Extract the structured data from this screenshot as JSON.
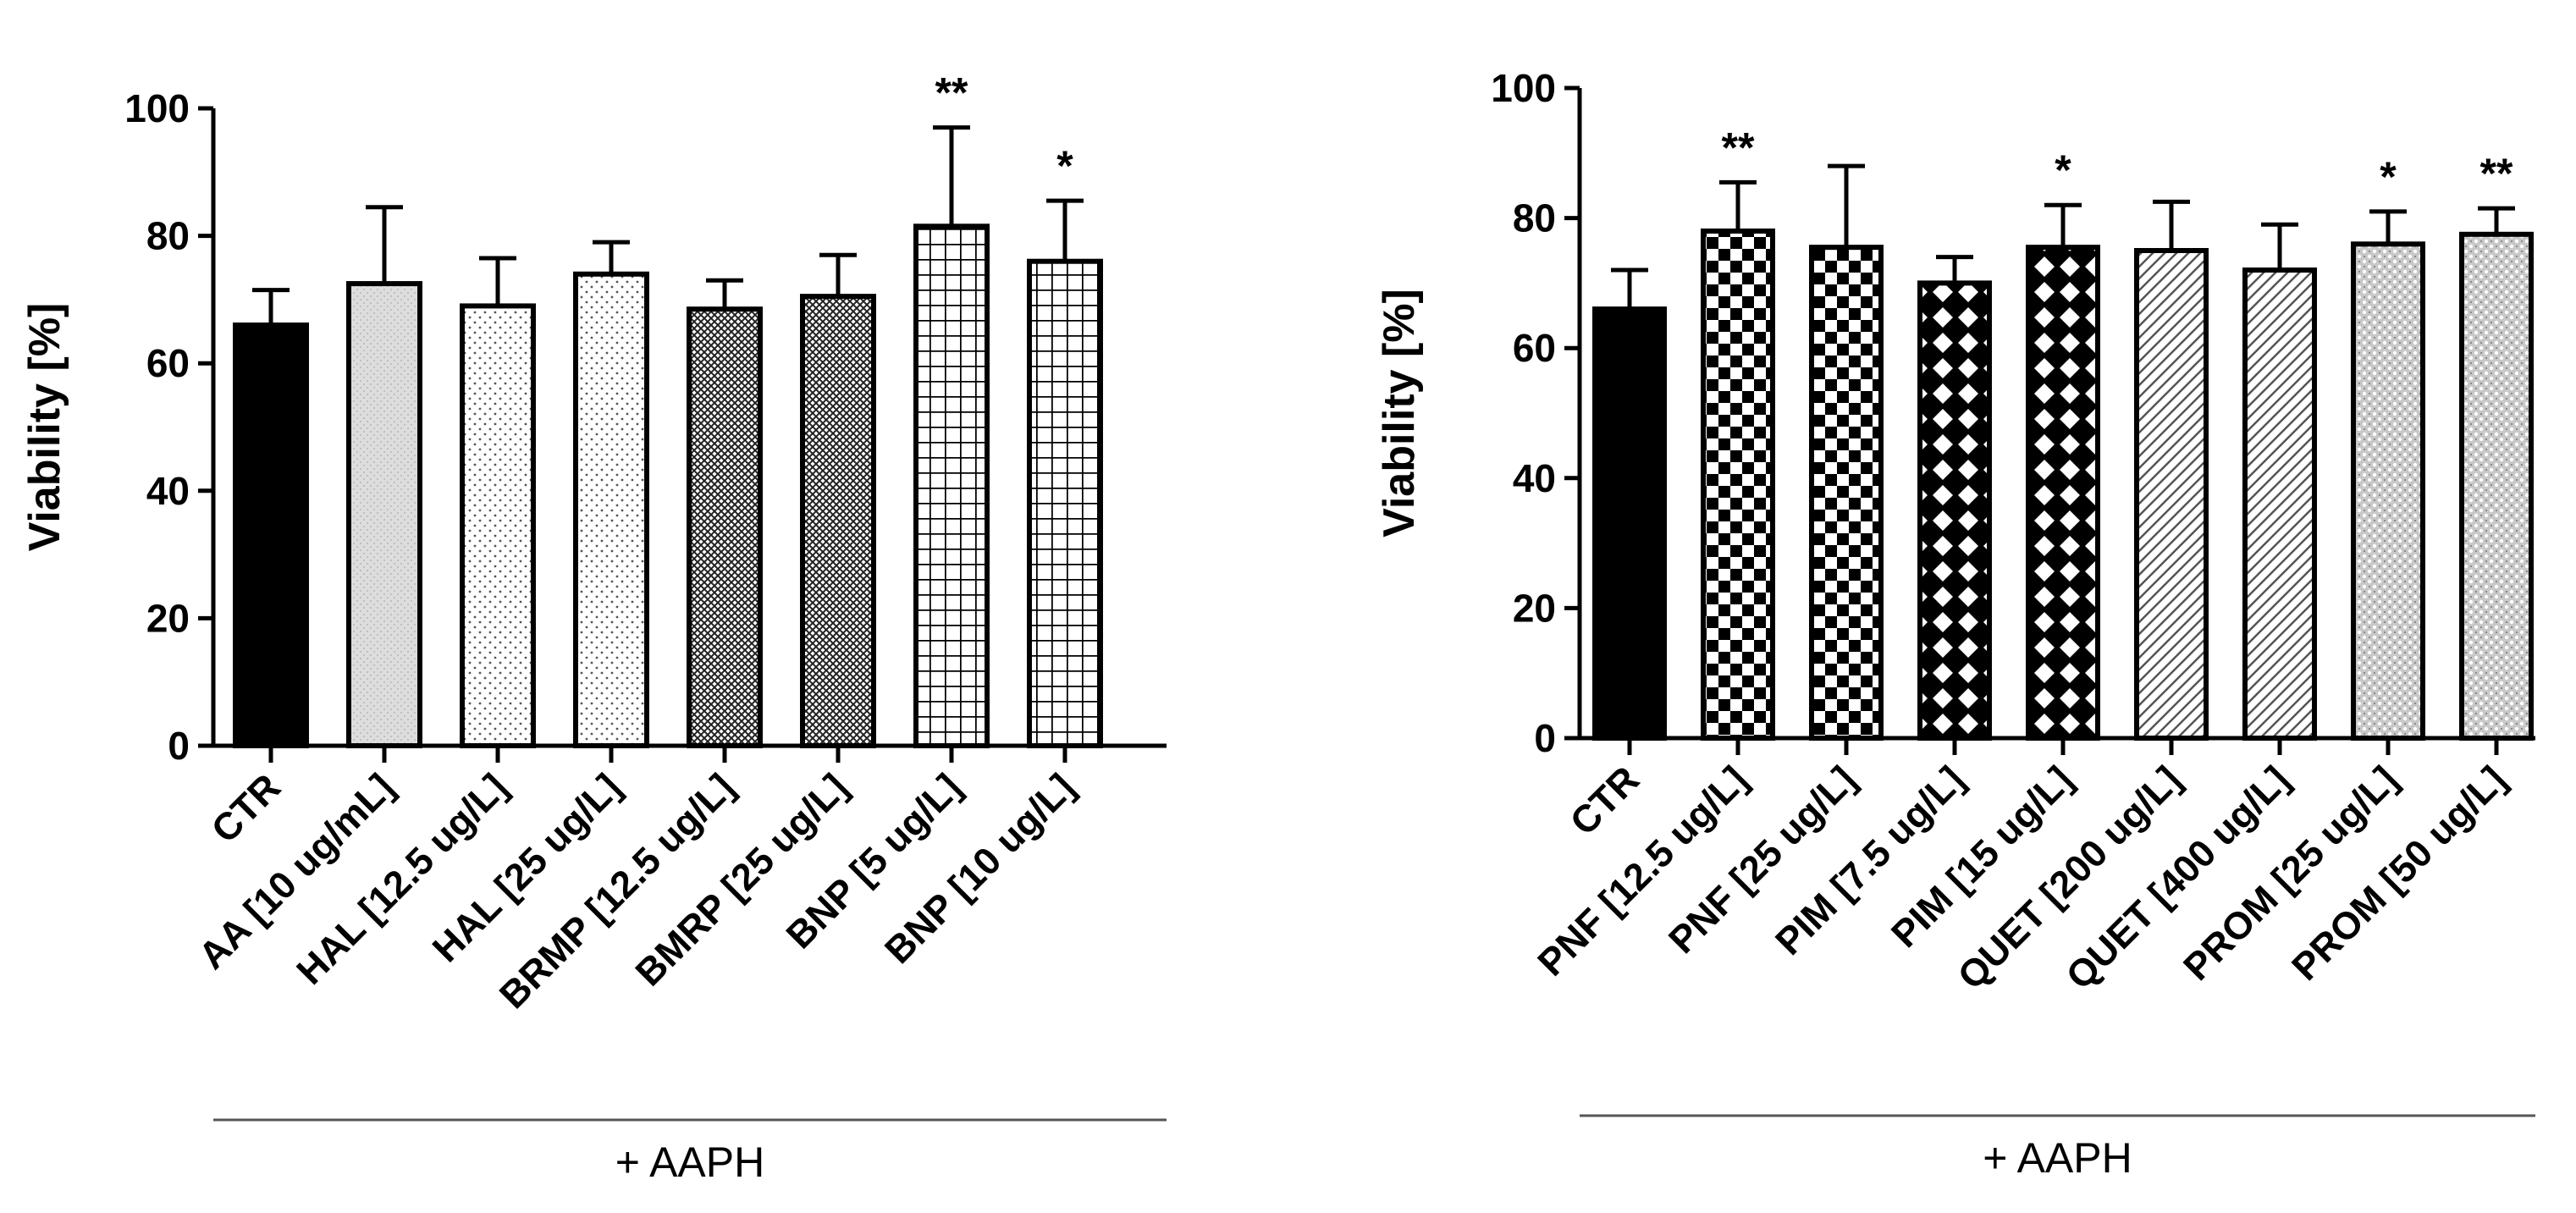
{
  "chart_data": [
    {
      "type": "bar",
      "ylabel": "Viability [%]",
      "ylim": [
        0,
        100
      ],
      "yticks": [
        0,
        20,
        40,
        60,
        80,
        100
      ],
      "group_label": "+ AAPH",
      "categories": [
        "CTR",
        "AA [10 ug/mL]",
        "HAL [12.5 ug/L]",
        "HAL [25 ug/L]",
        "BRMP [12.5 ug/L]",
        "BMRP [25 ug/L]",
        "BNP [5 ug/L]",
        "BNP [10 ug/L]"
      ],
      "values": [
        66,
        72.5,
        69,
        74,
        68.5,
        70.5,
        81.5,
        76
      ],
      "errors": [
        5.5,
        12,
        7.5,
        5,
        4.5,
        6.5,
        15.5,
        9.5
      ],
      "significance": [
        "",
        "",
        "",
        "",
        "",
        "",
        "**",
        "*"
      ],
      "patterns": [
        "solid-black",
        "light-gray-dots",
        "sparse-dots",
        "sparse-dots",
        "dense-crosshatch",
        "dense-crosshatch",
        "square-grid",
        "square-grid"
      ]
    },
    {
      "type": "bar",
      "ylabel": "Viability [%]",
      "ylim": [
        0,
        100
      ],
      "yticks": [
        0,
        20,
        40,
        60,
        80,
        100
      ],
      "group_label": "+ AAPH",
      "categories": [
        "CTR",
        "PNF [12.5 ug/L]",
        "PNF [25 ug/L]",
        "PIM [7.5 ug/L]",
        "PIM [15 ug/L]",
        "QUET [200 ug/L]",
        "QUET [400 ug/L]",
        "PROM [25 ug/L]",
        "PROM [50 ug/L]"
      ],
      "values": [
        66,
        78,
        75.5,
        70,
        75.5,
        75,
        72,
        76,
        77.5
      ],
      "errors": [
        6,
        7.5,
        12.5,
        4,
        6.5,
        7.5,
        7,
        5,
        4
      ],
      "significance": [
        "",
        "**",
        "",
        "",
        "*",
        "",
        "",
        "*",
        "**"
      ],
      "patterns": [
        "solid-black",
        "checker",
        "checker",
        "diamond",
        "diamond",
        "diagonal",
        "diagonal",
        "gray-scale",
        "gray-scale"
      ]
    }
  ]
}
